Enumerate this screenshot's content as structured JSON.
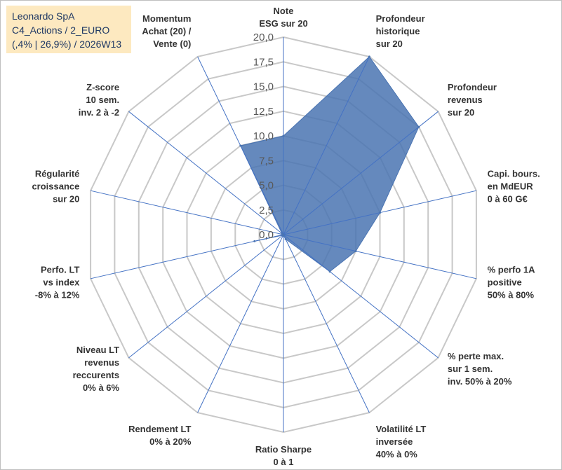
{
  "info_box": {
    "line1": "Leonardo SpA",
    "line2": "C4_Actions / 2_EURO",
    "line3": "(,4% | 26,9%) / 2026W13"
  },
  "colors": {
    "fill": "#4a74b2",
    "spoke": "#4472c4",
    "grid": "#c8c8c8"
  },
  "chart_data": {
    "type": "radar",
    "series": [
      {
        "name": "Leonardo SpA",
        "values": [
          10.0,
          20.0,
          17.5,
          10.0,
          7.5,
          6.0,
          0.5,
          0.1,
          0.1,
          0.1,
          3.0,
          0.0,
          0.2,
          10.0
        ]
      }
    ],
    "categories": [
      [
        "Note",
        "ESG sur 20"
      ],
      [
        "Profondeur",
        "historique",
        "sur 20"
      ],
      [
        "Profondeur",
        "revenus",
        "sur 20"
      ],
      [
        "Capi. bours.",
        "en MdEUR",
        "0 à 60 G€"
      ],
      [
        "% perfo 1A",
        "positive",
        "50% à 80%"
      ],
      [
        "% perte max.",
        "sur 1 sem.",
        "inv. 50% à 20%"
      ],
      [
        "Volatilité LT",
        "inversée",
        "40% à 0%"
      ],
      [
        "Ratio Sharpe",
        "0 à 1"
      ],
      [
        "Rendement LT",
        "0% à 20%"
      ],
      [
        "Niveau LT",
        "revenus",
        "reccurents",
        "0% à 6%"
      ],
      [
        "Perfo. LT",
        "vs index",
        "-8% à 12%"
      ],
      [
        "Régularité",
        "croissance",
        "sur 20"
      ],
      [
        "Z-score",
        "10 sem.",
        "inv. 2 à -2"
      ],
      [
        "Momentum",
        "Achat (20) /",
        "Vente (0)"
      ]
    ],
    "rlim": [
      0,
      20
    ],
    "ticks": [
      0,
      2.5,
      5,
      7.5,
      10,
      12.5,
      15,
      17.5,
      20
    ],
    "tick_labels": [
      "0,0",
      "2,5",
      "5,0",
      "7,5",
      "10,0",
      "12,5",
      "15,0",
      "17,5",
      "20,0"
    ],
    "grid": true
  }
}
